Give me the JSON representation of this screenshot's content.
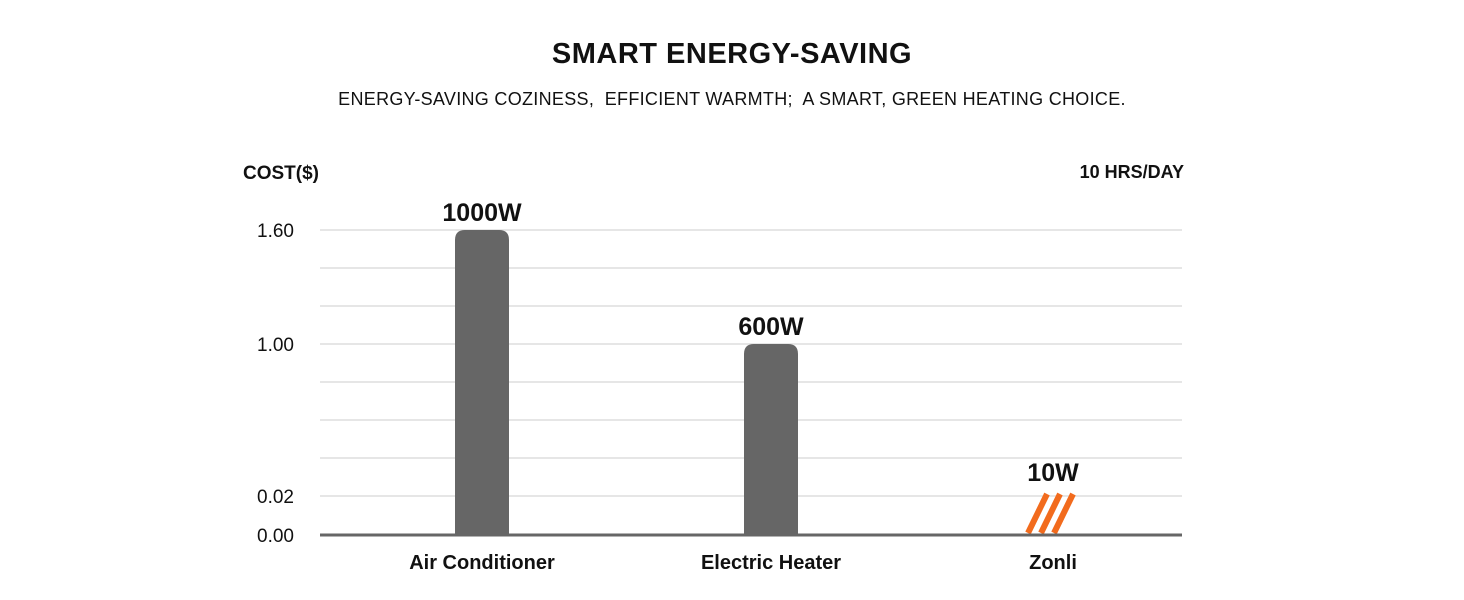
{
  "header": {
    "title": "SMART ENERGY-SAVING",
    "subtitle": "ENERGY-SAVING COZINESS,  EFFICIENT WARMTH;  A SMART, GREEN HEATING CHOICE."
  },
  "colors": {
    "bar": "#666666",
    "accent": "#f26b1d",
    "grid": "#e6e6e6",
    "axis": "#666666"
  },
  "chart_data": {
    "type": "bar",
    "ylabel": "COST($)",
    "note": "10 HRS/DAY",
    "categories": [
      "Air Conditioner",
      "Electric Heater",
      "Zonli"
    ],
    "values": [
      1.6,
      1.0,
      0.02
    ],
    "data_labels": [
      "1000W",
      "600W",
      "10W"
    ],
    "yticks": [
      "1.60",
      "1.00",
      "0.02",
      "0.00"
    ],
    "ylim": [
      0,
      1.6
    ],
    "grid": true,
    "highlight": "Zonli"
  }
}
